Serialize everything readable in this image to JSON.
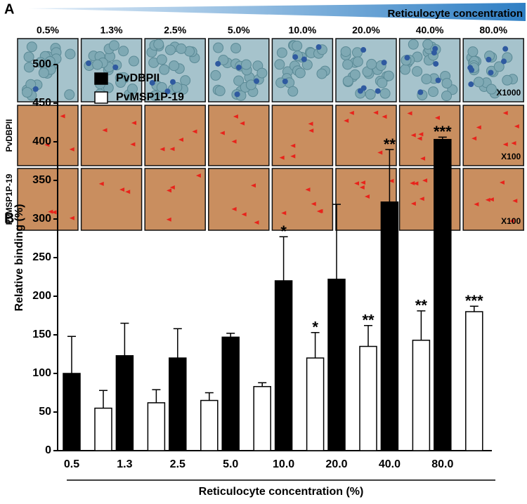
{
  "panel_a": {
    "label": "A",
    "gradient_label": "Reticulocyte concentration",
    "columns": [
      "0.5%",
      "1.3%",
      "2.5%",
      "5.0%",
      "10.0%",
      "20.0%",
      "40.0%",
      "80.0%"
    ],
    "rows": [
      {
        "magnification": "X1000"
      },
      {
        "label": "PvDBPII",
        "magnification": "X100"
      },
      {
        "label": "PvMSP1P-19",
        "magnification": "X100"
      }
    ]
  },
  "chart_data": {
    "type": "bar",
    "panel_label": "B",
    "x_label": "Reticulocyte concentration (%)",
    "y_label": "Relative binding (%)",
    "categories": [
      "0.5",
      "1.3",
      "2.5",
      "5.0",
      "10.0",
      "20.0",
      "40.0",
      "80.0"
    ],
    "series": [
      {
        "name": "PvDBPII",
        "color": "#000000",
        "values": [
          100,
          123,
          120,
          147,
          220,
          222,
          322,
          403
        ],
        "errors": [
          48,
          42,
          38,
          5,
          57,
          97,
          68,
          3
        ],
        "annotations": [
          null,
          null,
          null,
          null,
          "*",
          null,
          "**",
          "***"
        ]
      },
      {
        "name": "PvMSP1P-19",
        "color": "#ffffff",
        "values": [
          55,
          62,
          65,
          83,
          120,
          135,
          143,
          180
        ],
        "errors": [
          23,
          17,
          10,
          5,
          33,
          27,
          38,
          7
        ],
        "annotations": [
          null,
          null,
          null,
          null,
          "*",
          "**",
          "**",
          "***"
        ]
      }
    ],
    "ylim": [
      0,
      500
    ],
    "yticks": [
      0,
      50,
      100,
      150,
      200,
      250,
      300,
      350,
      400,
      450,
      500
    ]
  }
}
